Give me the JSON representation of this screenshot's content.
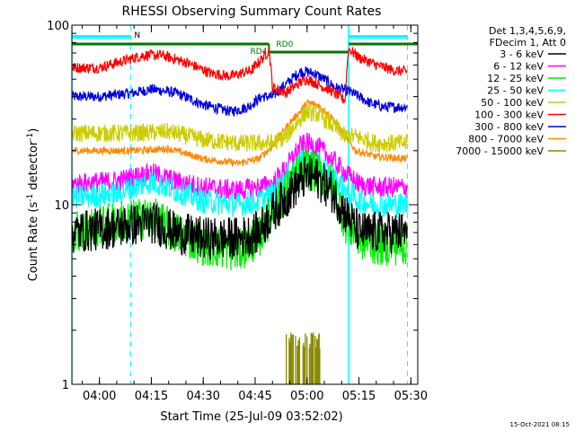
{
  "chart_data": {
    "type": "line",
    "title": "RHESSI Observing Summary Count Rates",
    "xlabel": "Start Time (25-Jul-09 03:52:02)",
    "ylabel": "Count Rate (s",
    "ylabel_sup": "-1",
    "ylabel_tail": "detector",
    "ylabel_end": ")",
    "y_scale": "log",
    "ylim": [
      1,
      100
    ],
    "y_ticks": [
      {
        "value": 1,
        "label": "1"
      },
      {
        "value": 10,
        "label": "10"
      },
      {
        "value": 100,
        "label": "100"
      }
    ],
    "x_ticks": [
      {
        "value": "04:00",
        "label": "04:00"
      },
      {
        "value": "04:15",
        "label": "04:15"
      },
      {
        "value": "04:30",
        "label": "04:30"
      },
      {
        "value": "04:45",
        "label": "04:45"
      },
      {
        "value": "05:00",
        "label": "05:00"
      },
      {
        "value": "05:15",
        "label": "05:15"
      },
      {
        "value": "05:30",
        "label": "05:30"
      }
    ],
    "xlim": [
      "03:52:02",
      "05:32:00"
    ],
    "legend": {
      "placement": "right",
      "header": [
        "Det 1,3,4,5,6,9,",
        "FDecim 1, Att 0"
      ],
      "entries": [
        {
          "name": "3 - 6 keV",
          "color": "#000000"
        },
        {
          "name": "6 - 12 keV",
          "color": "#ff00ff"
        },
        {
          "name": "12 - 25 keV",
          "color": "#00ee00"
        },
        {
          "name": "25 - 50 keV",
          "color": "#00ffff"
        },
        {
          "name": "50 - 100 keV",
          "color": "#cccc00"
        },
        {
          "name": "100 - 300 keV",
          "color": "#ff0000"
        },
        {
          "name": "300 - 800 keV",
          "color": "#0000dd"
        },
        {
          "name": "800 - 7000 keV",
          "color": "#ff8800"
        },
        {
          "name": "7000 - 15000 keV",
          "color": "#888800"
        }
      ]
    },
    "annotations": {
      "night_label": "N",
      "night_intervals": [
        [
          "03:52:02",
          "04:09"
        ],
        [
          "05:12",
          "05:29"
        ]
      ],
      "rd_label_1": "RD4",
      "rd_label_2": "RD0",
      "rd_level": 78,
      "rd_marker_time": "04:49",
      "saa_vertical_lines": [
        "04:09",
        "05:12",
        "05:29"
      ],
      "solid_vertical_lines": [
        "03:52:02",
        "05:12"
      ]
    },
    "timestamp": "15-Oct-2021 08:15",
    "series": [
      {
        "name": "300 - 800 keV",
        "color": "#0000dd",
        "noise": 0.03,
        "points": [
          [
            "03:52",
            40
          ],
          [
            "04:00",
            40
          ],
          [
            "04:10",
            42
          ],
          [
            "04:15",
            44
          ],
          [
            "04:22",
            42
          ],
          [
            "04:30",
            36
          ],
          [
            "04:38",
            33
          ],
          [
            "04:43",
            35
          ],
          [
            "04:47",
            40
          ],
          [
            "04:50",
            40
          ],
          [
            "04:54",
            47
          ],
          [
            "04:58",
            55
          ],
          [
            "05:00",
            55
          ],
          [
            "05:02",
            54
          ],
          [
            "05:05",
            50
          ],
          [
            "05:08",
            45
          ],
          [
            "05:12",
            43
          ],
          [
            "05:15",
            40
          ],
          [
            "05:18",
            37
          ],
          [
            "05:22",
            35
          ],
          [
            "05:29",
            35
          ]
        ]
      },
      {
        "name": "100 - 300 keV",
        "color": "#ff0000",
        "noise": 0.03,
        "points": [
          [
            "03:52",
            58
          ],
          [
            "04:00",
            58
          ],
          [
            "04:08",
            64
          ],
          [
            "04:13",
            68
          ],
          [
            "04:18",
            68
          ],
          [
            "04:25",
            62
          ],
          [
            "04:32",
            54
          ],
          [
            "04:38",
            52
          ],
          [
            "04:44",
            56
          ],
          [
            "04:48",
            68
          ],
          [
            "04:49",
            73
          ],
          [
            "04:50",
            45
          ],
          [
            "04:54",
            42
          ],
          [
            "04:58",
            48
          ],
          [
            "05:00",
            50
          ],
          [
            "05:03",
            47
          ],
          [
            "05:07",
            43
          ],
          [
            "05:11",
            38
          ],
          [
            "05:12",
            74
          ],
          [
            "05:15",
            66
          ],
          [
            "05:20",
            60
          ],
          [
            "05:25",
            56
          ],
          [
            "05:29",
            55
          ]
        ]
      },
      {
        "name": "800 - 7000 keV",
        "color": "#ff8800",
        "noise": 0.02,
        "points": [
          [
            "03:52",
            20
          ],
          [
            "04:10",
            20
          ],
          [
            "04:20",
            20.5
          ],
          [
            "04:30",
            18
          ],
          [
            "04:40",
            17
          ],
          [
            "04:46",
            18
          ],
          [
            "04:50",
            21
          ],
          [
            "04:54",
            27
          ],
          [
            "04:58",
            33
          ],
          [
            "05:00",
            37
          ],
          [
            "05:03",
            36
          ],
          [
            "05:07",
            31
          ],
          [
            "05:11",
            24
          ],
          [
            "05:14",
            20
          ],
          [
            "05:20",
            18.5
          ],
          [
            "05:29",
            18
          ]
        ]
      },
      {
        "name": "50 - 100 keV",
        "color": "#cccc00",
        "noise": 0.05,
        "points": [
          [
            "03:52",
            25
          ],
          [
            "04:10",
            25
          ],
          [
            "04:20",
            25.5
          ],
          [
            "04:30",
            23
          ],
          [
            "04:40",
            22
          ],
          [
            "04:46",
            22
          ],
          [
            "04:50",
            22
          ],
          [
            "04:54",
            24
          ],
          [
            "04:58",
            30
          ],
          [
            "05:00",
            33
          ],
          [
            "05:03",
            32
          ],
          [
            "05:07",
            28
          ],
          [
            "05:11",
            24
          ],
          [
            "05:14",
            24
          ],
          [
            "05:20",
            22
          ],
          [
            "05:29",
            22
          ]
        ]
      },
      {
        "name": "6 - 12 keV",
        "color": "#ff00ff",
        "noise": 0.06,
        "points": [
          [
            "03:52",
            13
          ],
          [
            "04:05",
            13.5
          ],
          [
            "04:15",
            15
          ],
          [
            "04:22",
            13.5
          ],
          [
            "04:30",
            12.5
          ],
          [
            "04:40",
            12
          ],
          [
            "04:46",
            12.5
          ],
          [
            "04:50",
            13
          ],
          [
            "04:54",
            16
          ],
          [
            "04:58",
            21
          ],
          [
            "05:00",
            22
          ],
          [
            "05:03",
            21
          ],
          [
            "05:07",
            18
          ],
          [
            "05:11",
            15
          ],
          [
            "05:15",
            13
          ],
          [
            "05:20",
            12.5
          ],
          [
            "05:29",
            12.5
          ]
        ]
      },
      {
        "name": "25 - 50 keV",
        "color": "#00ffff",
        "noise": 0.07,
        "points": [
          [
            "03:52",
            11
          ],
          [
            "04:05",
            11.5
          ],
          [
            "04:15",
            13.5
          ],
          [
            "04:22",
            12
          ],
          [
            "04:30",
            10.5
          ],
          [
            "04:40",
            10
          ],
          [
            "04:46",
            10.5
          ],
          [
            "04:50",
            11.5
          ],
          [
            "04:54",
            14
          ],
          [
            "04:58",
            17
          ],
          [
            "05:00",
            18
          ],
          [
            "05:03",
            17
          ],
          [
            "05:07",
            14.5
          ],
          [
            "05:11",
            12
          ],
          [
            "05:15",
            10.5
          ],
          [
            "05:20",
            10
          ],
          [
            "05:29",
            10
          ]
        ]
      },
      {
        "name": "12 - 25 keV",
        "color": "#00ee00",
        "noise": 0.12,
        "points": [
          [
            "03:52",
            7
          ],
          [
            "04:05",
            8
          ],
          [
            "04:15",
            8.5
          ],
          [
            "04:22",
            7
          ],
          [
            "04:30",
            6
          ],
          [
            "04:40",
            5.5
          ],
          [
            "04:46",
            6.5
          ],
          [
            "04:50",
            9
          ],
          [
            "04:54",
            12
          ],
          [
            "04:58",
            15
          ],
          [
            "05:00",
            16
          ],
          [
            "05:03",
            15
          ],
          [
            "05:07",
            13
          ],
          [
            "05:11",
            8
          ],
          [
            "05:15",
            6.5
          ],
          [
            "05:20",
            6
          ],
          [
            "05:29",
            6
          ]
        ]
      },
      {
        "name": "3 - 6 keV",
        "color": "#000000",
        "noise": 0.12,
        "points": [
          [
            "03:52",
            7
          ],
          [
            "04:05",
            7.5
          ],
          [
            "04:15",
            8
          ],
          [
            "04:22",
            7
          ],
          [
            "04:30",
            6.5
          ],
          [
            "04:40",
            6.5
          ],
          [
            "04:46",
            7
          ],
          [
            "04:50",
            9
          ],
          [
            "04:54",
            11
          ],
          [
            "04:58",
            13.5
          ],
          [
            "05:00",
            14.5
          ],
          [
            "05:03",
            14
          ],
          [
            "05:07",
            12
          ],
          [
            "05:11",
            9
          ],
          [
            "05:15",
            7
          ],
          [
            "05:20",
            7
          ],
          [
            "05:29",
            7
          ]
        ]
      }
    ],
    "burst": {
      "name": "7000 - 15000 keV",
      "color": "#888800",
      "from": "04:54",
      "to": "05:04",
      "base": 1,
      "peak": 1.95
    }
  }
}
